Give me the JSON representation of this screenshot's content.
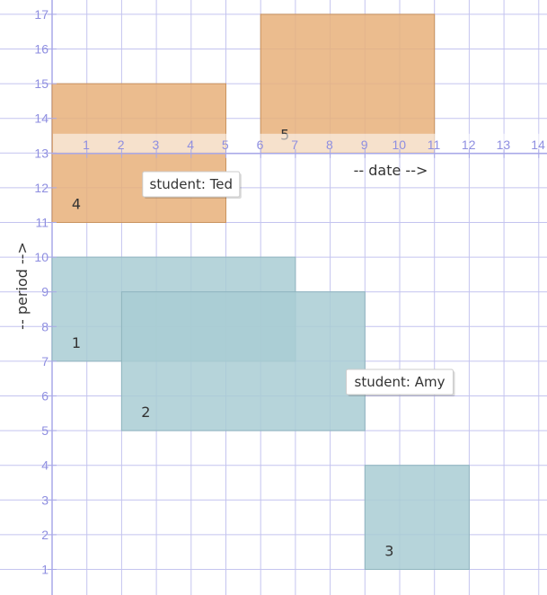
{
  "chart_data": {
    "type": "rectangle-plot",
    "x_axis": {
      "title": "-- date -->",
      "min": 1,
      "max": 14,
      "tick_labels": [
        "1",
        "2",
        "3",
        "4",
        "5",
        "6",
        "7",
        "8",
        "9",
        "10",
        "11",
        "12",
        "13",
        "14"
      ]
    },
    "y_axis": {
      "title": "-- period -->",
      "min": 1,
      "max": 17,
      "tick_labels": [
        "1",
        "2",
        "3",
        "4",
        "5",
        "6",
        "7",
        "8",
        "9",
        "10",
        "11",
        "12",
        "13",
        "14",
        "15",
        "16",
        "17"
      ]
    },
    "grid": true,
    "series": [
      {
        "name": "Amy",
        "color": "#a9cdd4",
        "rects": [
          {
            "label": "1",
            "x0": 1,
            "x1": 8,
            "y0": 7,
            "y1": 10
          },
          {
            "label": "2",
            "x0": 3,
            "x1": 10,
            "y0": 5,
            "y1": 9
          },
          {
            "label": "3",
            "x0": 10,
            "x1": 13,
            "y0": 1,
            "y1": 4
          }
        ]
      },
      {
        "name": "Ted",
        "color": "#e8b07a",
        "rects": [
          {
            "label": "4",
            "x0": 1,
            "x1": 6,
            "y0": 11,
            "y1": 15
          },
          {
            "label": "5",
            "x0": 7,
            "x1": 12,
            "y0": 13,
            "y1": 17
          }
        ]
      }
    ],
    "tooltips": [
      {
        "text": "student: Ted",
        "x": 5,
        "y": 12.1
      },
      {
        "text": "student: Amy",
        "x": 11,
        "y": 6.4
      }
    ]
  }
}
